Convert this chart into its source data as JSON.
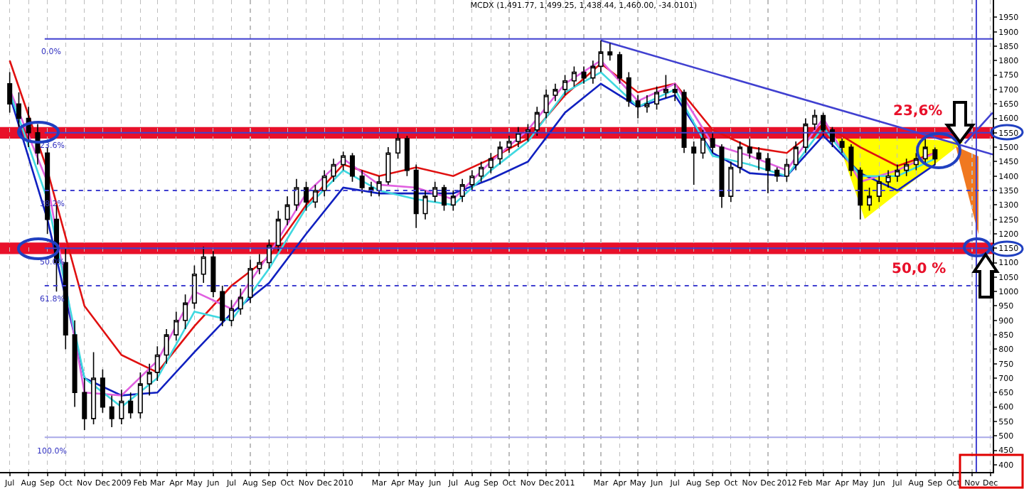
{
  "chart_data": {
    "type": "candlestick",
    "title": "MCDX (1,491.77, 1,499.25, 1,438.44, 1,460.00, -34.0101)",
    "x": [
      "2008-07-01",
      "2008-07-16",
      "2008-08-01",
      "2008-08-16",
      "2008-09-01",
      "2008-09-16",
      "2008-10-01",
      "2008-10-16",
      "2008-11-01",
      "2008-11-16",
      "2008-12-01",
      "2008-12-16",
      "2009-01-01",
      "2009-01-16",
      "2009-02-01",
      "2009-02-16",
      "2009-03-01",
      "2009-03-16",
      "2009-04-01",
      "2009-04-16",
      "2009-05-01",
      "2009-05-16",
      "2009-06-01",
      "2009-06-16",
      "2009-07-01",
      "2009-07-16",
      "2009-08-01",
      "2009-08-16",
      "2009-09-01",
      "2009-09-16",
      "2009-10-01",
      "2009-10-16",
      "2009-11-01",
      "2009-11-16",
      "2009-12-01",
      "2009-12-16",
      "2010-01-01",
      "2010-01-16",
      "2010-02-01",
      "2010-02-16",
      "2010-03-01",
      "2010-03-16",
      "2010-04-01",
      "2010-04-16",
      "2010-05-01",
      "2010-05-16",
      "2010-06-01",
      "2010-06-16",
      "2010-07-01",
      "2010-07-16",
      "2010-08-01",
      "2010-08-16",
      "2010-09-01",
      "2010-09-16",
      "2010-10-01",
      "2010-10-16",
      "2010-11-01",
      "2010-11-16",
      "2010-12-01",
      "2010-12-16",
      "2011-01-01",
      "2011-01-16",
      "2011-02-01",
      "2011-02-16",
      "2011-03-01",
      "2011-03-16",
      "2011-04-01",
      "2011-04-16",
      "2011-05-01",
      "2011-05-16",
      "2011-06-01",
      "2011-06-16",
      "2011-07-01",
      "2011-07-16",
      "2011-08-01",
      "2011-08-16",
      "2011-09-01",
      "2011-09-16",
      "2011-10-01",
      "2011-10-16",
      "2011-11-01",
      "2011-11-16",
      "2011-12-01",
      "2011-12-16",
      "2012-01-01",
      "2012-01-16",
      "2012-02-01",
      "2012-02-16",
      "2012-03-01",
      "2012-03-16",
      "2012-04-01",
      "2012-04-16",
      "2012-05-01",
      "2012-05-16",
      "2012-06-01",
      "2012-06-16",
      "2012-07-01",
      "2012-07-16",
      "2012-08-01",
      "2012-08-16",
      "2012-09-01"
    ],
    "ohlc": [
      [
        1720,
        1760,
        1620,
        1650
      ],
      [
        1650,
        1690,
        1570,
        1600
      ],
      [
        1600,
        1640,
        1500,
        1550
      ],
      [
        1550,
        1580,
        1440,
        1480
      ],
      [
        1480,
        1500,
        1200,
        1250
      ],
      [
        1250,
        1300,
        1000,
        1100
      ],
      [
        1100,
        1150,
        800,
        850
      ],
      [
        850,
        900,
        600,
        650
      ],
      [
        650,
        700,
        520,
        560
      ],
      [
        560,
        790,
        540,
        700
      ],
      [
        700,
        730,
        580,
        600
      ],
      [
        600,
        640,
        530,
        560
      ],
      [
        560,
        660,
        540,
        620
      ],
      [
        620,
        650,
        560,
        580
      ],
      [
        580,
        720,
        560,
        680
      ],
      [
        680,
        750,
        640,
        720
      ],
      [
        720,
        810,
        690,
        780
      ],
      [
        780,
        870,
        750,
        850
      ],
      [
        850,
        930,
        830,
        900
      ],
      [
        900,
        990,
        870,
        960
      ],
      [
        960,
        1090,
        940,
        1060
      ],
      [
        1060,
        1155,
        1030,
        1120
      ],
      [
        1120,
        1140,
        980,
        1000
      ],
      [
        1000,
        1020,
        880,
        900
      ],
      [
        900,
        970,
        880,
        940
      ],
      [
        940,
        1010,
        920,
        980
      ],
      [
        980,
        1110,
        960,
        1080
      ],
      [
        1080,
        1130,
        1060,
        1100
      ],
      [
        1100,
        1180,
        1080,
        1160
      ],
      [
        1160,
        1280,
        1140,
        1250
      ],
      [
        1250,
        1330,
        1230,
        1300
      ],
      [
        1300,
        1390,
        1280,
        1360
      ],
      [
        1360,
        1380,
        1280,
        1310
      ],
      [
        1310,
        1370,
        1290,
        1350
      ],
      [
        1350,
        1420,
        1330,
        1400
      ],
      [
        1400,
        1460,
        1380,
        1440
      ],
      [
        1440,
        1485,
        1420,
        1470
      ],
      [
        1470,
        1480,
        1380,
        1400
      ],
      [
        1400,
        1420,
        1340,
        1360
      ],
      [
        1360,
        1380,
        1330,
        1350
      ],
      [
        1350,
        1400,
        1330,
        1380
      ],
      [
        1380,
        1500,
        1370,
        1480
      ],
      [
        1480,
        1550,
        1460,
        1530
      ],
      [
        1530,
        1540,
        1400,
        1420
      ],
      [
        1420,
        1440,
        1220,
        1270
      ],
      [
        1270,
        1350,
        1250,
        1330
      ],
      [
        1330,
        1380,
        1310,
        1360
      ],
      [
        1360,
        1370,
        1280,
        1300
      ],
      [
        1300,
        1350,
        1280,
        1330
      ],
      [
        1330,
        1390,
        1310,
        1370
      ],
      [
        1370,
        1420,
        1350,
        1400
      ],
      [
        1400,
        1450,
        1380,
        1430
      ],
      [
        1430,
        1480,
        1410,
        1460
      ],
      [
        1460,
        1520,
        1440,
        1500
      ],
      [
        1500,
        1540,
        1480,
        1520
      ],
      [
        1520,
        1570,
        1500,
        1550
      ],
      [
        1550,
        1580,
        1520,
        1560
      ],
      [
        1560,
        1640,
        1540,
        1620
      ],
      [
        1620,
        1700,
        1600,
        1680
      ],
      [
        1680,
        1720,
        1660,
        1700
      ],
      [
        1700,
        1750,
        1680,
        1730
      ],
      [
        1730,
        1780,
        1710,
        1760
      ],
      [
        1760,
        1780,
        1720,
        1740
      ],
      [
        1740,
        1800,
        1720,
        1780
      ],
      [
        1780,
        1870,
        1760,
        1830
      ],
      [
        1830,
        1860,
        1800,
        1820
      ],
      [
        1820,
        1830,
        1720,
        1740
      ],
      [
        1740,
        1760,
        1640,
        1660
      ],
      [
        1660,
        1680,
        1600,
        1640
      ],
      [
        1640,
        1680,
        1620,
        1650
      ],
      [
        1650,
        1710,
        1630,
        1690
      ],
      [
        1690,
        1750,
        1670,
        1700
      ],
      [
        1700,
        1720,
        1660,
        1690
      ],
      [
        1690,
        1700,
        1480,
        1500
      ],
      [
        1500,
        1520,
        1370,
        1480
      ],
      [
        1480,
        1560,
        1460,
        1530
      ],
      [
        1530,
        1550,
        1480,
        1500
      ],
      [
        1500,
        1510,
        1290,
        1330
      ],
      [
        1330,
        1450,
        1310,
        1430
      ],
      [
        1430,
        1520,
        1410,
        1500
      ],
      [
        1500,
        1530,
        1460,
        1480
      ],
      [
        1480,
        1500,
        1420,
        1460
      ],
      [
        1460,
        1480,
        1340,
        1420
      ],
      [
        1420,
        1430,
        1380,
        1400
      ],
      [
        1400,
        1460,
        1380,
        1440
      ],
      [
        1440,
        1520,
        1420,
        1500
      ],
      [
        1500,
        1600,
        1480,
        1580
      ],
      [
        1580,
        1630,
        1560,
        1610
      ],
      [
        1610,
        1620,
        1540,
        1560
      ],
      [
        1560,
        1570,
        1500,
        1520
      ],
      [
        1520,
        1530,
        1480,
        1500
      ],
      [
        1500,
        1510,
        1400,
        1420
      ],
      [
        1420,
        1430,
        1250,
        1300
      ],
      [
        1300,
        1360,
        1280,
        1330
      ],
      [
        1330,
        1400,
        1310,
        1380
      ],
      [
        1380,
        1420,
        1360,
        1400
      ],
      [
        1400,
        1440,
        1380,
        1420
      ],
      [
        1420,
        1460,
        1400,
        1440
      ],
      [
        1440,
        1480,
        1420,
        1460
      ],
      [
        1460,
        1530,
        1440,
        1500
      ],
      [
        1491,
        1499,
        1438,
        1460
      ]
    ],
    "series": [
      {
        "type": "line",
        "color": "#e01010",
        "x": [
          "2008-07-01",
          "2008-09-01",
          "2008-11-01",
          "2009-01-01",
          "2009-03-01",
          "2009-05-01",
          "2009-07-01",
          "2009-09-01",
          "2009-11-01",
          "2010-01-01",
          "2010-03-01",
          "2010-05-01",
          "2010-07-01",
          "2010-09-01",
          "2010-11-01",
          "2011-01-01",
          "2011-03-01",
          "2011-05-01",
          "2011-07-01",
          "2011-09-01",
          "2011-11-01",
          "2012-01-01",
          "2012-03-01",
          "2012-05-01",
          "2012-07-01",
          "2012-09-01"
        ],
        "values": [
          1800,
          1420,
          950,
          780,
          720,
          880,
          1020,
          1120,
          1300,
          1440,
          1400,
          1430,
          1400,
          1460,
          1530,
          1680,
          1790,
          1690,
          1720,
          1560,
          1500,
          1480,
          1580,
          1500,
          1435,
          1480
        ]
      },
      {
        "type": "line",
        "color": "#1020c0",
        "x": [
          "2008-07-01",
          "2008-09-01",
          "2008-11-01",
          "2009-01-01",
          "2009-03-01",
          "2009-05-01",
          "2009-07-01",
          "2009-09-01",
          "2009-11-01",
          "2010-01-01",
          "2010-03-01",
          "2010-05-01",
          "2010-07-01",
          "2010-09-01",
          "2010-11-01",
          "2011-01-01",
          "2011-03-01",
          "2011-05-01",
          "2011-07-01",
          "2011-09-01",
          "2011-11-01",
          "2012-01-01",
          "2012-03-01",
          "2012-05-01",
          "2012-07-01",
          "2012-09-01"
        ],
        "values": [
          1680,
          1250,
          700,
          640,
          650,
          790,
          925,
          1030,
          1200,
          1360,
          1340,
          1340,
          1340,
          1390,
          1450,
          1620,
          1720,
          1640,
          1680,
          1480,
          1410,
          1400,
          1540,
          1410,
          1350,
          1440
        ]
      },
      {
        "type": "line",
        "color": "#e060e0",
        "x": [
          "2008-07-01",
          "2008-09-01",
          "2008-11-01",
          "2009-01-01",
          "2009-03-01",
          "2009-05-01",
          "2009-07-01",
          "2009-09-01",
          "2009-11-01",
          "2010-01-01",
          "2010-03-01",
          "2010-05-01",
          "2010-07-01",
          "2010-09-01",
          "2010-11-01",
          "2011-01-01",
          "2011-03-01",
          "2011-05-01",
          "2011-07-01",
          "2011-09-01",
          "2011-11-01",
          "2012-01-01",
          "2012-03-01",
          "2012-05-01",
          "2012-07-01",
          "2012-09-01"
        ],
        "values": [
          1700,
          1380,
          650,
          640,
          760,
          1000,
          940,
          1130,
          1340,
          1460,
          1370,
          1360,
          1320,
          1450,
          1560,
          1720,
          1800,
          1660,
          1720,
          1510,
          1470,
          1420,
          1600,
          1380,
          1420,
          1480
        ]
      },
      {
        "type": "line",
        "color": "#40d8e0",
        "x": [
          "2008-07-01",
          "2008-09-01",
          "2008-11-01",
          "2009-01-01",
          "2009-03-01",
          "2009-05-01",
          "2009-07-01",
          "2009-09-01",
          "2009-11-01",
          "2010-01-01",
          "2010-03-01",
          "2010-05-01",
          "2010-07-01",
          "2010-09-01",
          "2010-11-01",
          "2011-01-01",
          "2011-03-01",
          "2011-05-01",
          "2011-07-01",
          "2011-09-01",
          "2011-11-01",
          "2012-01-01",
          "2012-03-01",
          "2012-05-01",
          "2012-07-01",
          "2012-09-01"
        ],
        "values": [
          1690,
          1320,
          700,
          600,
          700,
          930,
          900,
          1080,
          1290,
          1420,
          1350,
          1320,
          1300,
          1420,
          1520,
          1690,
          1760,
          1640,
          1700,
          1470,
          1440,
          1400,
          1570,
          1400,
          1400,
          1460
        ]
      },
      {
        "type": "line",
        "color": "#4040d0",
        "x": [
          "2011-03-01",
          "2012-12-05"
        ],
        "values": [
          1870,
          1475
        ]
      },
      {
        "type": "line",
        "color": "#4040d0",
        "x": [
          "2012-10-20",
          "2012-12-05"
        ],
        "values": [
          1513,
          1620
        ]
      }
    ],
    "bands": [
      {
        "axis": "y",
        "from": 1530,
        "to": 1570,
        "label": "23,6%",
        "color": "#e8102a"
      },
      {
        "axis": "y",
        "from": 1130,
        "to": 1170,
        "label": "50,0 %",
        "color": "#e8102a"
      }
    ],
    "annotations": [
      {
        "text": "0.0%",
        "x": "2008-09-08",
        "y": 1875
      },
      {
        "text": "23.6%",
        "x": "2008-09-08",
        "y": 1550
      },
      {
        "text": "38.2%",
        "x": "2008-09-08",
        "y": 1350
      },
      {
        "text": "50.0%",
        "x": "2008-09-08",
        "y": 1150
      },
      {
        "text": "61.8%",
        "x": "2008-09-08",
        "y": 1020
      },
      {
        "text": "100.0%",
        "x": "2008-09-08",
        "y": 495
      }
    ],
    "ref_lines": [
      {
        "axis": "y",
        "value": 1875,
        "color": "#4040d0",
        "line_style": "solid"
      },
      {
        "axis": "y",
        "value": 1550,
        "color": "#4040d0",
        "line_style": "solid"
      },
      {
        "axis": "y",
        "value": 1350,
        "color": "#4040d0",
        "line_style": "dotted"
      },
      {
        "axis": "y",
        "value": 1150,
        "color": "#4040d0",
        "line_style": "solid"
      },
      {
        "axis": "y",
        "value": 1020,
        "color": "#4040d0",
        "line_style": "dotted"
      },
      {
        "axis": "y",
        "value": 495,
        "color": "#a8a8e8",
        "line_style": "solid"
      },
      {
        "axis": "x",
        "value": "2012-11-08",
        "color": "#4040d0",
        "line_style": "solid"
      }
    ],
    "xlim": [
      "2008-06-15",
      "2012-12-05"
    ],
    "xticks": [
      {
        "value": "2008-07-01",
        "label": "Jul"
      },
      {
        "value": "2008-08-01",
        "label": "Aug"
      },
      {
        "value": "2008-09-01",
        "label": "Sep"
      },
      {
        "value": "2008-10-01",
        "label": "Oct"
      },
      {
        "value": "2008-11-01",
        "label": "Nov"
      },
      {
        "value": "2008-12-01",
        "label": "Dec"
      },
      {
        "value": "2009-01-01",
        "label": "2009"
      },
      {
        "value": "2009-02-01",
        "label": "Feb"
      },
      {
        "value": "2009-03-01",
        "label": "Mar"
      },
      {
        "value": "2009-04-01",
        "label": "Apr"
      },
      {
        "value": "2009-05-01",
        "label": "May"
      },
      {
        "value": "2009-06-01",
        "label": "Jun"
      },
      {
        "value": "2009-07-01",
        "label": "Jul"
      },
      {
        "value": "2009-08-01",
        "label": "Aug"
      },
      {
        "value": "2009-09-01",
        "label": "Sep"
      },
      {
        "value": "2009-10-01",
        "label": "Oct"
      },
      {
        "value": "2009-11-01",
        "label": "Nov"
      },
      {
        "value": "2009-12-01",
        "label": "Dec"
      },
      {
        "value": "2010-01-01",
        "label": "2010"
      },
      {
        "value": "2010-02-01",
        "label": null
      },
      {
        "value": "2010-03-01",
        "label": "Mar"
      },
      {
        "value": "2010-04-01",
        "label": "Apr"
      },
      {
        "value": "2010-05-01",
        "label": "May"
      },
      {
        "value": "2010-06-01",
        "label": "Jun"
      },
      {
        "value": "2010-07-01",
        "label": "Jul"
      },
      {
        "value": "2010-08-01",
        "label": "Aug"
      },
      {
        "value": "2010-09-01",
        "label": "Sep"
      },
      {
        "value": "2010-10-01",
        "label": "Oct"
      },
      {
        "value": "2010-11-01",
        "label": "Nov"
      },
      {
        "value": "2010-12-01",
        "label": "Dec"
      },
      {
        "value": "2011-01-01",
        "label": "2011"
      },
      {
        "value": "2011-02-01",
        "label": null
      },
      {
        "value": "2011-03-01",
        "label": "Mar"
      },
      {
        "value": "2011-04-01",
        "label": "Apr"
      },
      {
        "value": "2011-05-01",
        "label": "May"
      },
      {
        "value": "2011-06-01",
        "label": "Jun"
      },
      {
        "value": "2011-07-01",
        "label": "Jul"
      },
      {
        "value": "2011-08-01",
        "label": "Aug"
      },
      {
        "value": "2011-09-01",
        "label": "Sep"
      },
      {
        "value": "2011-10-01",
        "label": "Oct"
      },
      {
        "value": "2011-11-01",
        "label": "Nov"
      },
      {
        "value": "2011-12-01",
        "label": "Dec"
      },
      {
        "value": "2012-01-01",
        "label": "2012"
      },
      {
        "value": "2012-02-01",
        "label": "Feb"
      },
      {
        "value": "2012-03-01",
        "label": "Mar"
      },
      {
        "value": "2012-04-01",
        "label": "Apr"
      },
      {
        "value": "2012-05-01",
        "label": "May"
      },
      {
        "value": "2012-06-01",
        "label": "Jun"
      },
      {
        "value": "2012-07-01",
        "label": "Jul"
      },
      {
        "value": "2012-08-01",
        "label": "Aug"
      },
      {
        "value": "2012-09-01",
        "label": "Sep"
      },
      {
        "value": "2012-10-01",
        "label": "Oct"
      },
      {
        "value": "2012-11-01",
        "label": "Nov"
      },
      {
        "value": "2012-12-01",
        "label": "Dec"
      }
    ],
    "ylim": [
      375,
      2010
    ],
    "yticks": [
      400,
      450,
      500,
      550,
      600,
      650,
      700,
      750,
      800,
      850,
      900,
      950,
      1000,
      1050,
      1100,
      1150,
      1200,
      1250,
      1300,
      1350,
      1400,
      1450,
      1500,
      1550,
      1600,
      1650,
      1700,
      1750,
      1800,
      1850,
      1900,
      1950
    ],
    "grid": "x"
  }
}
